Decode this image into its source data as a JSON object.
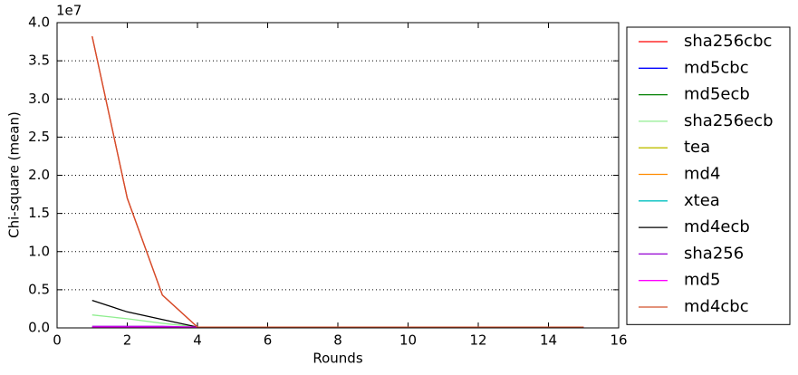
{
  "chart_data": {
    "type": "line",
    "x_label": "Rounds",
    "y_label": "Chi-square (mean)",
    "y_offset_label": "1e7",
    "x": [
      1,
      2,
      3,
      4,
      5,
      6,
      7,
      8,
      9,
      10,
      11,
      12,
      13,
      14,
      15
    ],
    "series": [
      {
        "name": "sha256cbc",
        "color": "#ff0000",
        "values": [
          3.82,
          1.7,
          0.43,
          0.01,
          0.01,
          0.01,
          0.01,
          0.01,
          0.01,
          0.01,
          0.01,
          0.01,
          0.01,
          0.01,
          0.01
        ]
      },
      {
        "name": "md5cbc",
        "color": "#0000ff",
        "values": [
          0.01,
          0.01,
          0.01,
          0.01,
          0.01,
          0.01,
          0.01,
          0.01,
          0.01,
          0.01,
          0.01,
          0.01,
          0.01,
          0.01,
          0.01
        ]
      },
      {
        "name": "md5ecb",
        "color": "#008000",
        "values": [
          0.01,
          0.01,
          0.01,
          0.01,
          0.01,
          0.01,
          0.01,
          0.01,
          0.01,
          0.01,
          0.01,
          0.01,
          0.01,
          0.01,
          0.01
        ]
      },
      {
        "name": "sha256ecb",
        "color": "#90ee90",
        "values": [
          0.17,
          0.12,
          0.06,
          0.01,
          0.01,
          0.01,
          0.01,
          0.01,
          0.01,
          0.01,
          0.01,
          0.01,
          0.01,
          0.01,
          0.01
        ]
      },
      {
        "name": "tea",
        "color": "#bfbf00",
        "values": [
          0.01,
          0.01,
          0.01,
          0.01,
          0.01,
          0.01,
          0.01,
          0.01,
          0.01,
          0.01,
          0.01,
          0.01,
          0.01,
          0.01,
          0.01
        ]
      },
      {
        "name": "md4",
        "color": "#ff8c00",
        "values": [
          0.01,
          0.01,
          0.01,
          0.01,
          0.01,
          0.01,
          0.01,
          0.01,
          0.01,
          0.01,
          0.01,
          0.01,
          0.01,
          0.01,
          0.01
        ]
      },
      {
        "name": "xtea",
        "color": "#00bfbf",
        "values": [
          0.01,
          0.01,
          0.01,
          0.01,
          0.01,
          0.01,
          0.01,
          0.01,
          0.01,
          0.01,
          0.01,
          0.01,
          0.01,
          0.01,
          0.01
        ]
      },
      {
        "name": "md4ecb",
        "color": "#000000",
        "values": [
          0.36,
          0.21,
          0.11,
          0.01,
          0.01,
          0.01,
          0.01,
          0.01,
          0.01,
          0.01,
          0.01,
          0.01,
          0.01,
          0.01,
          0.01
        ]
      },
      {
        "name": "sha256",
        "color": "#9400d3",
        "values": [
          0.02,
          0.02,
          0.02,
          0.01,
          0.01,
          0.01,
          0.01,
          0.01,
          0.01,
          0.01,
          0.01,
          0.01,
          0.01,
          0.01,
          0.01
        ]
      },
      {
        "name": "md5",
        "color": "#ff00ff",
        "values": [
          0.01,
          0.01,
          0.01,
          0.01,
          0.01,
          0.01,
          0.01,
          0.01,
          0.01,
          0.01,
          0.01,
          0.01,
          0.01,
          0.01,
          0.01
        ]
      },
      {
        "name": "md4cbc",
        "color": "#d2502a",
        "values": [
          3.82,
          1.7,
          0.43,
          0.01,
          0.01,
          0.01,
          0.01,
          0.01,
          0.01,
          0.01,
          0.01,
          0.01,
          0.01,
          0.01,
          0.01
        ]
      }
    ],
    "xlim": [
      0,
      16
    ],
    "xticks": [
      0,
      2,
      4,
      6,
      8,
      10,
      12,
      14,
      16
    ],
    "ylim": [
      0,
      4
    ],
    "yticks": [
      {
        "value": 0,
        "label": "0.0"
      },
      0.5,
      {
        "value": 1,
        "label": "1.0"
      },
      1.5,
      {
        "value": 2,
        "label": "2.0"
      },
      2.5,
      {
        "value": 3,
        "label": "3.0"
      },
      3.5,
      {
        "value": 4,
        "label": "4.0"
      }
    ],
    "grid": true,
    "legend": "outside right"
  }
}
